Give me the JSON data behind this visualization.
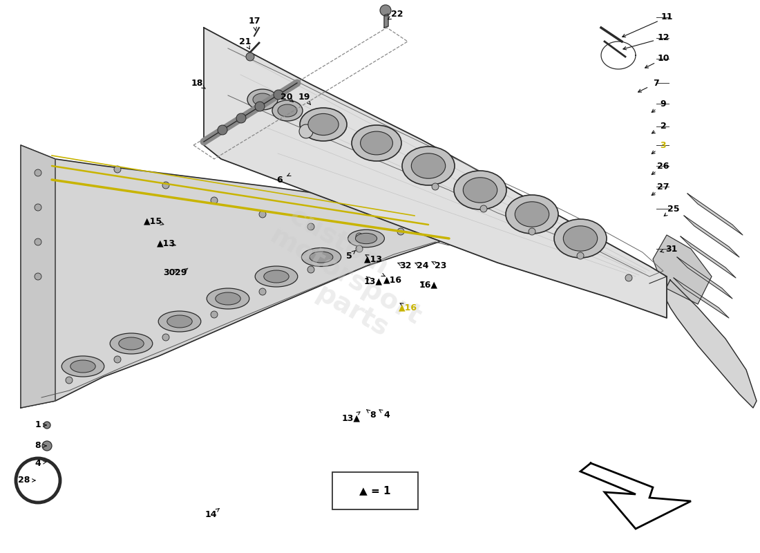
{
  "bg_color": "#ffffff",
  "lc": "#2a2a2a",
  "fill_body": "#d8d8d8",
  "fill_cover": "#e2e2e2",
  "fill_dark": "#b0b0b0",
  "fill_mid": "#c8c8c8",
  "yellow": "#c8b400",
  "legend_text": "▲ = 1",
  "watermark_lines": [
    "custom",
    "motorsport",
    "parts"
  ],
  "fig_w": 11.0,
  "fig_h": 8.0,
  "dpi": 100
}
